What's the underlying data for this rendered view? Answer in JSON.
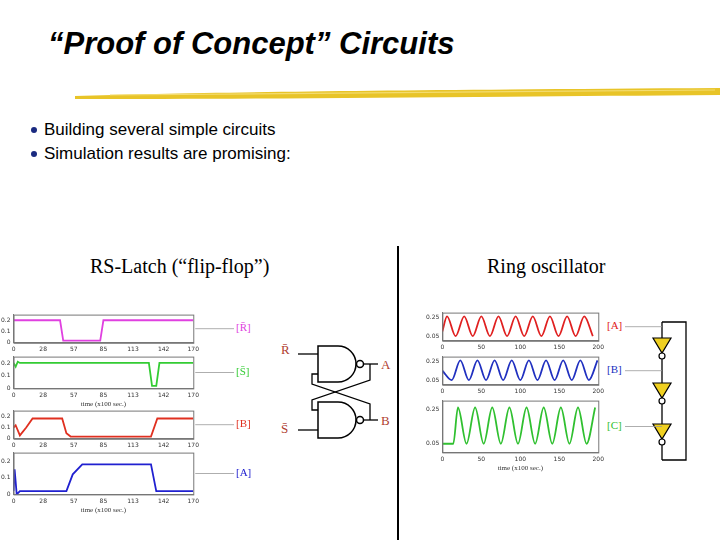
{
  "title": "“Proof of Concept” Circuits",
  "bullets": [
    "Building several simple circuits",
    "Simulation results are promising:"
  ],
  "panels": [
    {
      "heading": "RS-Latch (“flip-flop”)",
      "circuit_labels": [
        "R̄",
        "A",
        "B",
        "S̄"
      ]
    },
    {
      "heading": "Ring oscillator"
    }
  ],
  "chart_data": [
    {
      "type": "line",
      "title": "[R̄]",
      "color": "#e040e0",
      "grid": false,
      "x": [
        0,
        44,
        47,
        82,
        85,
        170
      ],
      "values": [
        0.2,
        0.2,
        0.02,
        0.02,
        0.2,
        0.2
      ],
      "xlim": [
        0,
        170
      ],
      "xticks": [
        0,
        28,
        57,
        85,
        113,
        142,
        170
      ],
      "ylim": [
        0,
        0.25
      ],
      "yticks": [
        0,
        0.1,
        0.2
      ]
    },
    {
      "type": "line",
      "title": "[S̄]",
      "color": "#33cc33",
      "grid": false,
      "xlabel": "time (x100 sec.)",
      "x": [
        0,
        2,
        4,
        6,
        128,
        131,
        135,
        138,
        170
      ],
      "values": [
        0.2,
        0.17,
        0.21,
        0.2,
        0.2,
        0.02,
        0.02,
        0.2,
        0.2
      ],
      "xlim": [
        0,
        170
      ],
      "xticks": [
        0,
        28,
        57,
        85,
        113,
        142,
        170
      ],
      "ylim": [
        0,
        0.25
      ],
      "yticks": [
        0,
        0.1,
        0.2
      ]
    },
    {
      "type": "line",
      "title": "[B]",
      "color": "#e03020",
      "grid": false,
      "x": [
        0,
        2,
        6,
        12,
        18,
        46,
        50,
        54,
        130,
        136,
        170
      ],
      "values": [
        0.1,
        0.12,
        0.03,
        0.1,
        0.18,
        0.18,
        0.05,
        0.02,
        0.02,
        0.18,
        0.18
      ],
      "xlim": [
        0,
        170
      ],
      "xticks": [
        0,
        28,
        57,
        85,
        113,
        142,
        170
      ],
      "ylim": [
        0,
        0.25
      ],
      "yticks": [
        0,
        0.1,
        0.2
      ]
    },
    {
      "type": "line",
      "title": "[A]",
      "color": "#2020d0",
      "grid": false,
      "xlabel": "time (x100 sec.)",
      "x": [
        0,
        1,
        3,
        6,
        50,
        56,
        65,
        130,
        135,
        170
      ],
      "values": [
        0.02,
        0.15,
        0.0,
        0.02,
        0.02,
        0.12,
        0.18,
        0.18,
        0.02,
        0.02
      ],
      "xlim": [
        0,
        170
      ],
      "xticks": [
        0,
        28,
        57,
        85,
        113,
        142,
        170
      ],
      "ylim": [
        0,
        0.25
      ],
      "yticks": [
        0,
        0.1,
        0.2
      ]
    },
    {
      "type": "line",
      "title": "[A]",
      "color": "#e02020",
      "grid": false,
      "x": [
        0,
        6,
        17,
        28,
        39,
        50,
        61,
        72,
        83,
        94,
        105,
        116,
        127,
        138,
        149,
        160,
        171,
        182,
        193
      ],
      "values": [
        0.1,
        0.26,
        0.05,
        0.26,
        0.05,
        0.26,
        0.05,
        0.26,
        0.05,
        0.26,
        0.05,
        0.26,
        0.05,
        0.26,
        0.05,
        0.26,
        0.05,
        0.26,
        0.05
      ],
      "xlim": [
        0,
        200
      ],
      "xticks": [
        0,
        50,
        100,
        150,
        200
      ],
      "ylim": [
        0,
        0.3
      ],
      "yticks": [
        0.05,
        0.25
      ]
    },
    {
      "type": "line",
      "title": "[B]",
      "color": "#2030c0",
      "grid": false,
      "x": [
        0,
        12,
        23,
        34,
        45,
        56,
        67,
        78,
        89,
        100,
        111,
        122,
        133,
        144,
        155,
        166,
        177,
        188,
        199
      ],
      "values": [
        0.15,
        0.05,
        0.26,
        0.05,
        0.26,
        0.05,
        0.26,
        0.05,
        0.26,
        0.05,
        0.26,
        0.05,
        0.26,
        0.05,
        0.26,
        0.05,
        0.26,
        0.05,
        0.26
      ],
      "xlim": [
        0,
        200
      ],
      "xticks": [
        0,
        50,
        100,
        150,
        200
      ],
      "ylim": [
        0,
        0.3
      ],
      "yticks": [
        0.05,
        0.25
      ]
    },
    {
      "type": "line",
      "title": "[C]",
      "color": "#30c030",
      "grid": false,
      "xlabel": "time (x100 sec.)",
      "x": [
        0,
        14,
        20,
        31,
        42,
        53,
        64,
        75,
        86,
        97,
        108,
        119,
        130,
        141,
        152,
        163,
        174,
        185,
        196
      ],
      "values": [
        0.05,
        0.05,
        0.26,
        0.05,
        0.26,
        0.05,
        0.26,
        0.05,
        0.26,
        0.05,
        0.26,
        0.05,
        0.26,
        0.05,
        0.26,
        0.05,
        0.26,
        0.05,
        0.26
      ],
      "xlim": [
        0,
        200
      ],
      "xticks": [
        0,
        50,
        100,
        150,
        200
      ],
      "ylim": [
        0,
        0.3
      ],
      "yticks": [
        0.05,
        0.25
      ]
    }
  ]
}
